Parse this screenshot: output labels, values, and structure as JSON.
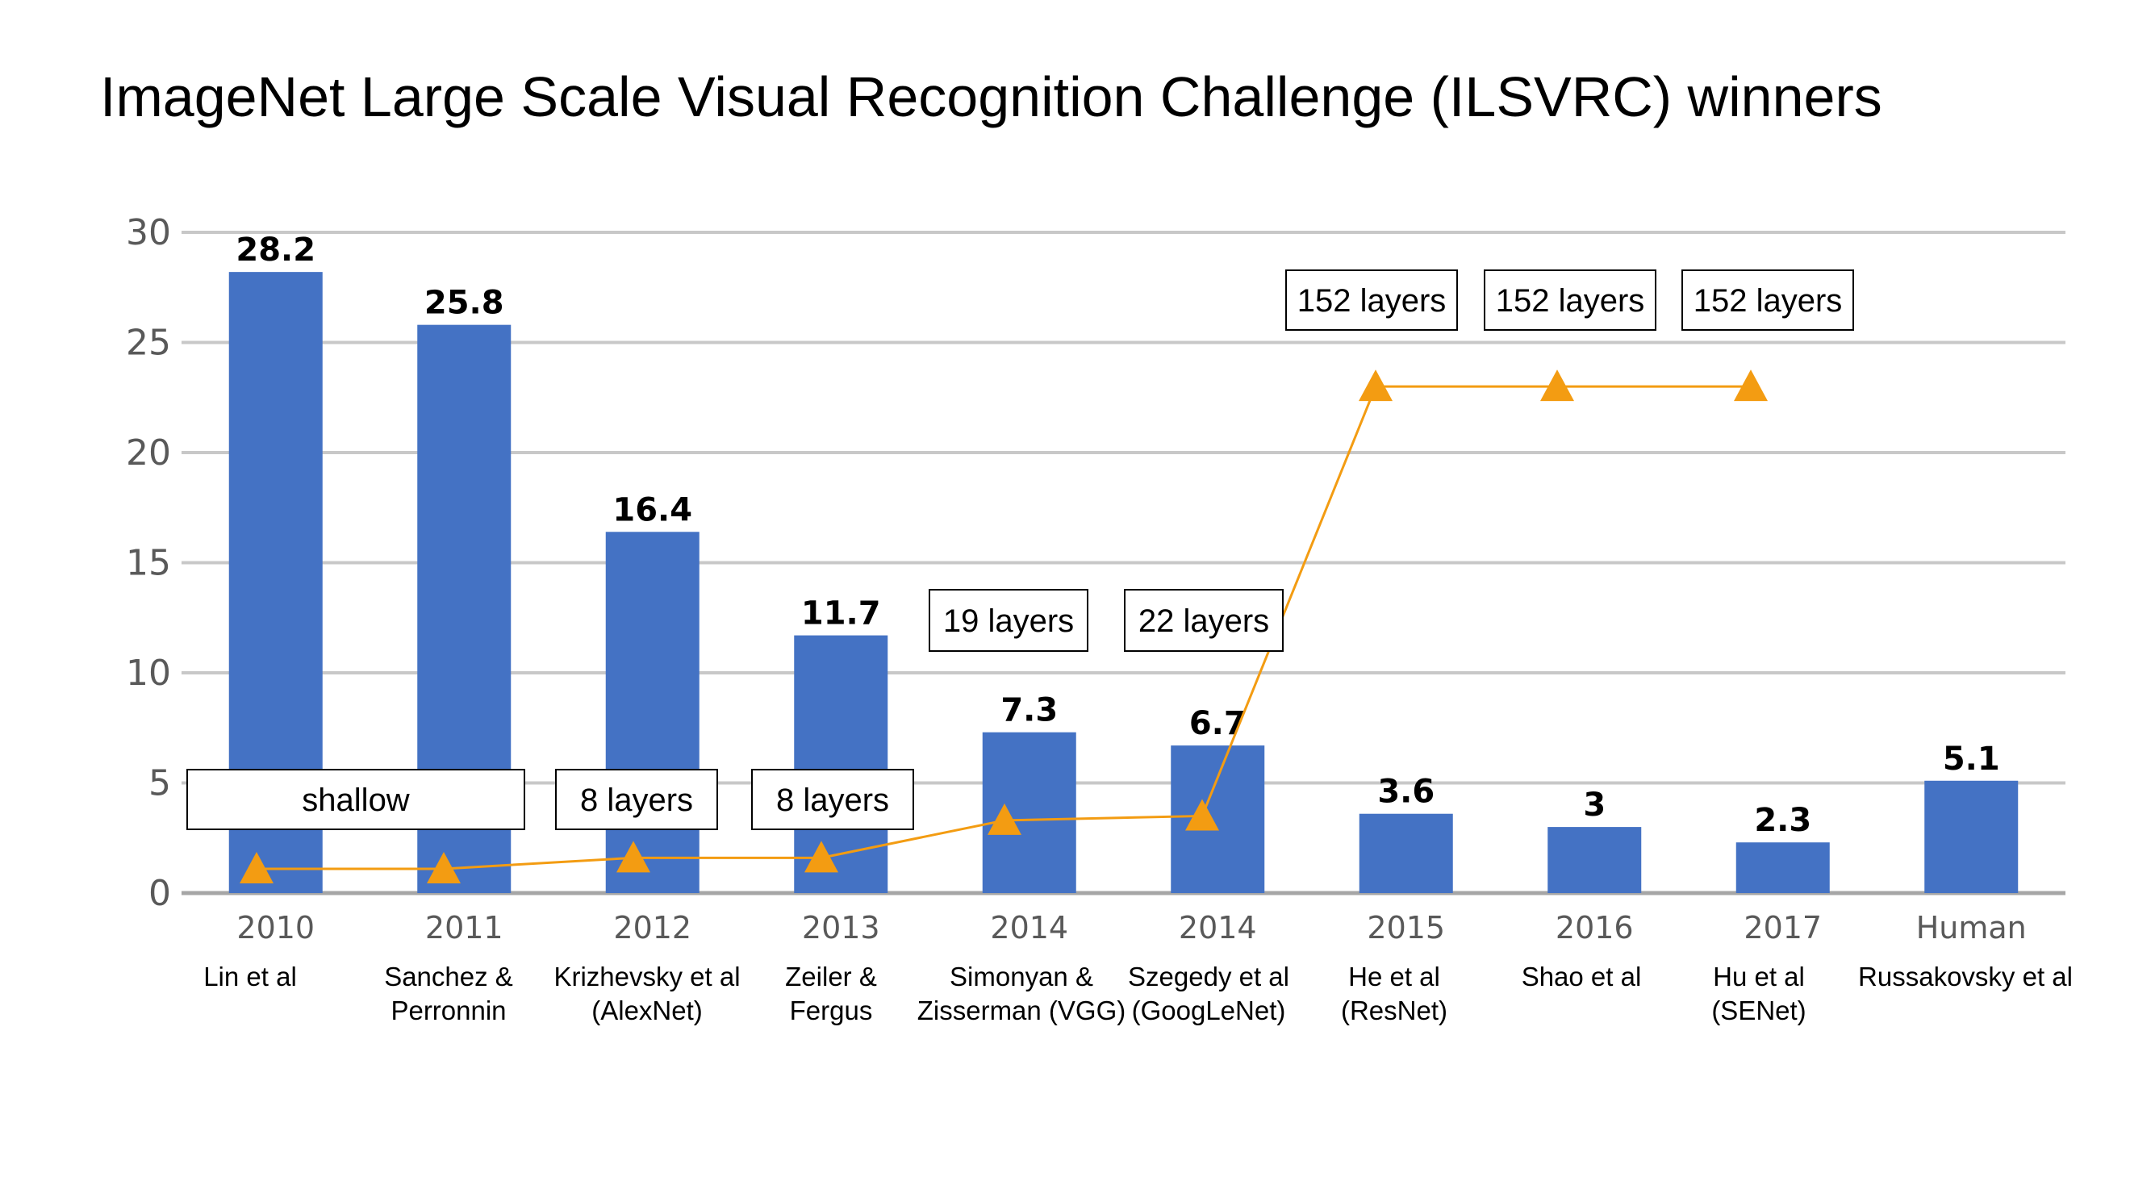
{
  "title": "ImageNet Large Scale Visual Recognition Challenge (ILSVRC) winners",
  "chart_data": {
    "type": "bar",
    "title": "ImageNet Large Scale Visual Recognition Challenge (ILSVRC) winners",
    "xlabel": "",
    "ylabel": "",
    "ylim": [
      0,
      30
    ],
    "yticks": [
      0,
      5,
      10,
      15,
      20,
      25,
      30
    ],
    "grid": true,
    "categories": [
      "2010",
      "2011",
      "2012",
      "2013",
      "2014",
      "2014",
      "2015",
      "2016",
      "2017",
      "Human"
    ],
    "winners": [
      [
        "Lin et al"
      ],
      [
        "Sanchez &",
        "Perronnin"
      ],
      [
        "Krizhevsky et al",
        "(AlexNet)"
      ],
      [
        "Zeiler &",
        "Fergus"
      ],
      [
        "Simonyan &",
        "Zisserman (VGG)"
      ],
      [
        "Szegedy et al",
        "(GoogLeNet)"
      ],
      [
        "He et al",
        "(ResNet)"
      ],
      [
        "Shao et al"
      ],
      [
        "Hu et al",
        "(SENet)"
      ],
      [
        "Russakovsky et al"
      ]
    ],
    "values": [
      28.2,
      25.8,
      16.4,
      11.7,
      7.3,
      6.7,
      3.6,
      3,
      2.3,
      5.1
    ],
    "value_labels": [
      "28.2",
      "25.8",
      "16.4",
      "11.7",
      "7.3",
      "6.7",
      "3.6",
      "3",
      "2.3",
      "5.1"
    ],
    "depth_series": {
      "values": [
        1.1,
        1.1,
        1.6,
        1.6,
        3.3,
        3.5,
        23,
        23,
        23,
        null
      ]
    },
    "annotations": [
      "shallow",
      "8 layers",
      "8 layers",
      "19 layers",
      "22 layers",
      "152 layers",
      "152 layers",
      "152 layers"
    ],
    "colors": {
      "bar": "#4472c4",
      "depth": "#f39c12",
      "grid": "#c8c8c8",
      "axis": "#a6a6a6"
    }
  }
}
